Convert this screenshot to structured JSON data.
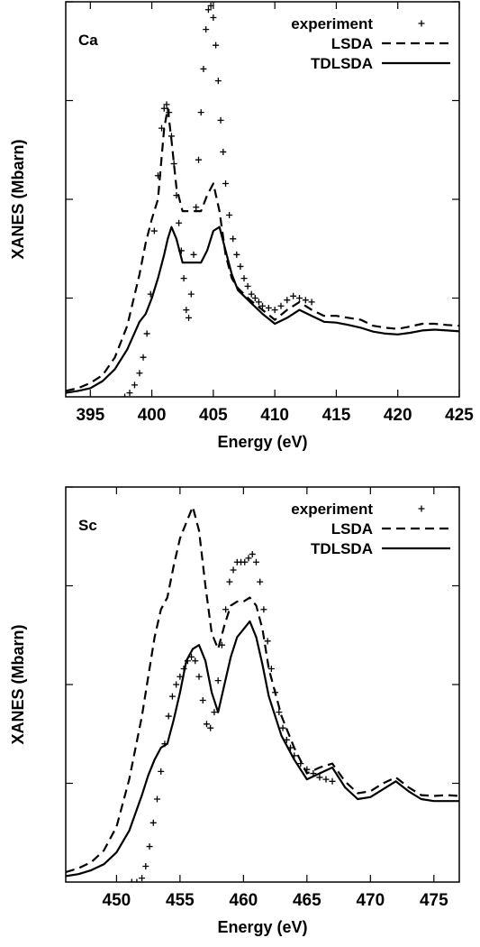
{
  "chart_data": [
    {
      "type": "line",
      "panel_label": "Ca",
      "xlabel": "Energy (eV)",
      "ylabel": "XANES (Mbarn)",
      "xlim": [
        393,
        425
      ],
      "ylim": [
        0,
        10
      ],
      "xticks": [
        395,
        400,
        405,
        410,
        415,
        420,
        425
      ],
      "yticks": [
        2.5,
        5,
        7.5,
        10
      ],
      "grid": false,
      "legend_position": "top-right",
      "series": [
        {
          "name": "experiment",
          "style": "points",
          "marker": "+",
          "x": [
            397.8,
            398.2,
            398.6,
            399.0,
            399.3,
            399.6,
            399.9,
            400.2,
            400.5,
            400.8,
            401.0,
            401.2,
            401.4,
            401.6,
            401.8,
            402.0,
            402.2,
            402.4,
            402.6,
            402.8,
            403.0,
            403.2,
            403.4,
            403.6,
            403.8,
            404.0,
            404.2,
            404.4,
            404.6,
            404.8,
            405.0,
            405.2,
            405.4,
            405.6,
            405.8,
            406.0,
            406.3,
            406.6,
            406.9,
            407.2,
            407.5,
            407.8,
            408.1,
            408.4,
            408.7,
            409.0,
            409.5,
            410.0,
            410.5,
            411.0,
            411.5,
            412.0,
            412.5,
            413.0
          ],
          "y": [
            0.0,
            0.1,
            0.3,
            0.6,
            1.0,
            1.6,
            2.6,
            4.2,
            5.6,
            6.8,
            7.3,
            7.4,
            7.2,
            6.6,
            5.9,
            5.1,
            4.4,
            3.7,
            3.0,
            2.2,
            2.0,
            2.6,
            3.6,
            4.8,
            6.0,
            7.2,
            8.3,
            9.3,
            9.8,
            9.9,
            9.6,
            8.9,
            8.0,
            7.0,
            6.2,
            5.4,
            4.6,
            4.0,
            3.6,
            3.3,
            3.0,
            2.8,
            2.6,
            2.5,
            2.4,
            2.3,
            2.25,
            2.2,
            2.3,
            2.45,
            2.55,
            2.5,
            2.45,
            2.4
          ]
        },
        {
          "name": "LSDA",
          "style": "dashed",
          "x": [
            393,
            394,
            395,
            396,
            397,
            398,
            399,
            399.5,
            400,
            400.5,
            401,
            401.3,
            401.6,
            402,
            402.5,
            403,
            403.5,
            404,
            404.5,
            405,
            405.5,
            406,
            406.5,
            407,
            408,
            409,
            410,
            411,
            412,
            413,
            414,
            415,
            416,
            417,
            418,
            419,
            420,
            421,
            422,
            423,
            424,
            425
          ],
          "y": [
            0.15,
            0.22,
            0.35,
            0.55,
            1.0,
            1.8,
            3.1,
            3.9,
            4.5,
            5.0,
            6.8,
            7.3,
            6.5,
            5.3,
            4.7,
            4.7,
            4.7,
            4.7,
            5.1,
            5.4,
            4.7,
            3.6,
            3.0,
            2.75,
            2.45,
            2.2,
            1.95,
            2.2,
            2.4,
            2.2,
            2.05,
            2.05,
            2.0,
            1.95,
            1.8,
            1.75,
            1.72,
            1.78,
            1.85,
            1.85,
            1.82,
            1.8
          ]
        },
        {
          "name": "TDLSDA",
          "style": "solid",
          "x": [
            393,
            394,
            395,
            396,
            397,
            398,
            399,
            399.5,
            400,
            400.5,
            401,
            401.3,
            401.6,
            402,
            402.5,
            403,
            403.5,
            404,
            404.5,
            405,
            405.5,
            406,
            406.5,
            407,
            408,
            409,
            410,
            411,
            412,
            413,
            414,
            415,
            416,
            417,
            418,
            419,
            420,
            421,
            422,
            423,
            424,
            425
          ],
          "y": [
            0.1,
            0.15,
            0.22,
            0.4,
            0.7,
            1.2,
            1.9,
            2.1,
            2.5,
            3.0,
            3.6,
            4.0,
            4.3,
            4.0,
            3.4,
            3.4,
            3.4,
            3.4,
            3.7,
            4.2,
            4.3,
            3.7,
            3.1,
            2.7,
            2.4,
            2.1,
            1.85,
            2.0,
            2.2,
            2.05,
            1.9,
            1.88,
            1.82,
            1.75,
            1.65,
            1.6,
            1.58,
            1.62,
            1.68,
            1.7,
            1.68,
            1.66
          ]
        }
      ]
    },
    {
      "type": "line",
      "panel_label": "Sc",
      "xlabel": "Energy (eV)",
      "ylabel": "XANES (Mbarn)",
      "xlim": [
        446,
        477
      ],
      "ylim": [
        0,
        10
      ],
      "xticks": [
        450,
        455,
        460,
        465,
        470,
        475
      ],
      "yticks": [
        2.5,
        5,
        7.5,
        10
      ],
      "grid": false,
      "legend_position": "top-right",
      "series": [
        {
          "name": "experiment",
          "style": "points",
          "marker": "+",
          "x": [
            451.2,
            451.6,
            452.0,
            452.3,
            452.6,
            452.9,
            453.2,
            453.5,
            453.8,
            454.1,
            454.4,
            454.7,
            455.0,
            455.3,
            455.6,
            455.9,
            456.2,
            456.5,
            456.8,
            457.1,
            457.4,
            457.7,
            458.0,
            458.3,
            458.6,
            458.9,
            459.2,
            459.5,
            459.8,
            460.1,
            460.4,
            460.7,
            461.0,
            461.3,
            461.6,
            461.9,
            462.2,
            462.5,
            462.8,
            463.1,
            463.4,
            463.7,
            464.0,
            464.5,
            465.0,
            465.5,
            466.0,
            466.5,
            467.0
          ],
          "y": [
            0.0,
            0.0,
            0.1,
            0.4,
            0.9,
            1.5,
            2.1,
            2.8,
            3.5,
            4.2,
            4.7,
            5.0,
            5.2,
            5.4,
            5.6,
            5.7,
            5.6,
            5.2,
            4.6,
            4.0,
            3.9,
            4.3,
            5.1,
            6.0,
            6.9,
            7.6,
            7.9,
            8.1,
            8.1,
            8.1,
            8.2,
            8.3,
            8.1,
            7.6,
            6.9,
            6.1,
            5.4,
            4.8,
            4.3,
            3.9,
            3.6,
            3.4,
            3.2,
            3.0,
            2.85,
            2.75,
            2.65,
            2.6,
            2.55
          ]
        },
        {
          "name": "LSDA",
          "style": "dashed",
          "x": [
            446,
            447,
            448,
            449,
            450,
            451,
            452,
            452.5,
            453,
            453.5,
            454,
            454.5,
            455,
            455.5,
            456,
            456.5,
            457,
            457.5,
            458,
            458.5,
            459,
            459.5,
            460,
            460.5,
            461,
            461.5,
            462,
            463,
            464,
            465,
            466,
            467,
            468,
            469,
            470,
            471,
            472,
            473,
            474,
            475,
            476,
            477
          ],
          "y": [
            0.25,
            0.35,
            0.5,
            0.8,
            1.4,
            2.6,
            4.2,
            5.2,
            6.2,
            6.9,
            7.2,
            8.0,
            8.7,
            9.1,
            9.5,
            8.9,
            7.5,
            6.3,
            5.9,
            6.5,
            7.0,
            7.1,
            7.1,
            7.2,
            7.0,
            6.4,
            5.4,
            4.2,
            3.4,
            2.75,
            2.9,
            3.0,
            2.55,
            2.25,
            2.3,
            2.5,
            2.65,
            2.4,
            2.2,
            2.18,
            2.2,
            2.18
          ]
        },
        {
          "name": "TDLSDA",
          "style": "solid",
          "x": [
            446,
            447,
            448,
            449,
            450,
            451,
            452,
            452.5,
            453,
            453.5,
            454,
            454.5,
            455,
            455.5,
            456,
            456.5,
            457,
            457.5,
            458,
            458.5,
            459,
            459.5,
            460,
            460.5,
            461,
            461.5,
            462,
            463,
            464,
            465,
            466,
            467,
            468,
            469,
            470,
            471,
            472,
            473,
            474,
            475,
            476,
            477
          ],
          "y": [
            0.15,
            0.2,
            0.3,
            0.45,
            0.75,
            1.3,
            2.2,
            2.7,
            3.1,
            3.4,
            3.5,
            4.1,
            4.8,
            5.6,
            5.9,
            6.0,
            5.6,
            4.8,
            4.3,
            5.0,
            5.7,
            6.2,
            6.4,
            6.6,
            6.2,
            5.5,
            4.7,
            3.7,
            3.1,
            2.6,
            2.75,
            2.9,
            2.4,
            2.1,
            2.15,
            2.35,
            2.55,
            2.3,
            2.1,
            2.05,
            2.05,
            2.05
          ]
        }
      ]
    }
  ]
}
